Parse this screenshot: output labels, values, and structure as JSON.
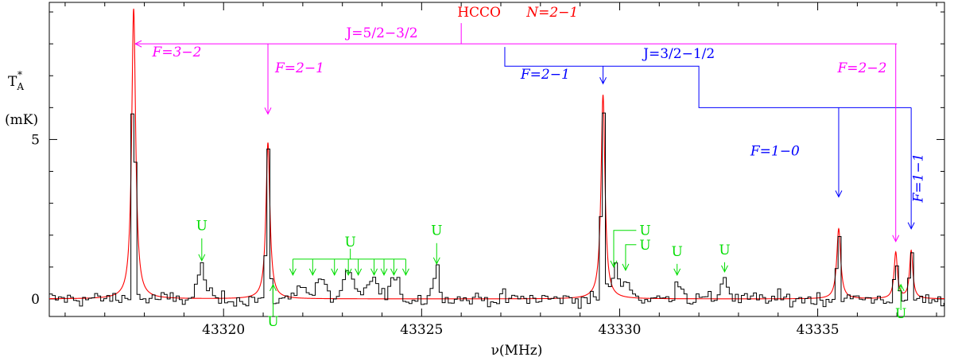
{
  "chart_data": {
    "type": "line",
    "title": "",
    "xlabel": "ν(MHz)",
    "ylabel_top": "T",
    "ylabel_sub": "A",
    "ylabel_sup": "*",
    "ylabel_unit": "(mK)",
    "xlim": [
      43315.6,
      43338.2
    ],
    "ylim": [
      -0.55,
      9.3
    ],
    "xticks": [
      {
        "value": 43320,
        "label": "43320"
      },
      {
        "value": 43325,
        "label": "43325"
      },
      {
        "value": 43330,
        "label": "43330"
      },
      {
        "value": 43335,
        "label": "43335"
      }
    ],
    "xminor_step": 1,
    "yticks": [
      {
        "value": 0,
        "label": "0"
      },
      {
        "value": 5,
        "label": "5"
      }
    ],
    "yminor_step": 1,
    "grid": false,
    "series": [
      {
        "name": "",
        "kind": "observed",
        "color": "#000000",
        "sampling_mhz": 0.0763,
        "noise_rms_mk": 0.23,
        "features": [
          {
            "center": 43317.73,
            "peak": 8.0,
            "width": 0.04
          },
          {
            "center": 43321.12,
            "peak": 4.8,
            "width": 0.04
          },
          {
            "center": 43329.58,
            "peak": 6.7,
            "width": 0.04
          },
          {
            "center": 43335.53,
            "peak": 2.3,
            "width": 0.04
          },
          {
            "center": 43336.97,
            "peak": 1.4,
            "width": 0.035
          },
          {
            "center": 43337.36,
            "peak": 1.8,
            "width": 0.035
          },
          {
            "center": 43319.45,
            "peak": 1.0,
            "width": 0.1
          },
          {
            "center": 43325.38,
            "peak": 0.9,
            "width": 0.09
          },
          {
            "center": 43329.9,
            "peak": 0.9,
            "width": 0.1
          },
          {
            "center": 43330.2,
            "peak": 0.6,
            "width": 0.1
          },
          {
            "center": 43331.5,
            "peak": 0.6,
            "width": 0.09
          },
          {
            "center": 43332.65,
            "peak": 0.7,
            "width": 0.09
          },
          {
            "center": 43321.95,
            "peak": 0.5,
            "width": 0.12
          },
          {
            "center": 43322.45,
            "peak": 0.6,
            "width": 0.12
          },
          {
            "center": 43323.15,
            "peak": 0.8,
            "width": 0.12
          },
          {
            "center": 43323.75,
            "peak": 0.7,
            "width": 0.12
          },
          {
            "center": 43324.3,
            "peak": 0.6,
            "width": 0.12
          }
        ]
      },
      {
        "name": "",
        "kind": "model",
        "color": "#ff0000",
        "peaks": [
          {
            "center": 43317.73,
            "height": 9.1,
            "hwhm": 0.06
          },
          {
            "center": 43321.12,
            "height": 4.9,
            "hwhm": 0.06
          },
          {
            "center": 43329.58,
            "height": 6.4,
            "hwhm": 0.06
          },
          {
            "center": 43335.53,
            "height": 2.2,
            "hwhm": 0.06
          },
          {
            "center": 43336.97,
            "height": 1.45,
            "hwhm": 0.05
          },
          {
            "center": 43337.36,
            "height": 1.5,
            "hwhm": 0.05
          }
        ]
      }
    ],
    "annotations": {
      "molecule": {
        "text": "HCCO",
        "color": "#ff0000",
        "x": 43327.0,
        "y": 8.85
      },
      "transition": {
        "text": "N=2−1",
        "color": "#ff0000",
        "x": 43328.3,
        "y": 8.85
      },
      "j_magenta": {
        "text": "J=5/2−3/2",
        "color": "#ff00ff",
        "label_x": 43324.0,
        "label_y": 8.2,
        "stem_x": 43326.0,
        "stem_top": 8.65,
        "bar_y": 8.0,
        "bar_from": 43317.73,
        "bar_to": 43337.0
      },
      "j_blue": {
        "text": "J=3/2−1/2",
        "color": "#0000ff",
        "label_x": 43331.5,
        "label_y": 7.55,
        "stem_x": 43327.1,
        "stem_top": 7.9,
        "bar_y": 7.3,
        "bar_to": 43332.0,
        "step_x": 43332.0,
        "bar2_y": 6.0,
        "bar2_from": 43329.58,
        "bar2_to": 43337.36
      },
      "f_labels": [
        {
          "text": "F=3−2",
          "color": "#ff00ff",
          "label_x": 43318.2,
          "label_y": 7.6,
          "arrow_x": 43317.73,
          "from_y": 8.0,
          "to_y": 8.0,
          "style": "left"
        },
        {
          "text": "F=2−1",
          "color": "#ff00ff",
          "label_x": 43321.3,
          "label_y": 7.1,
          "arrow_x": 43321.12,
          "from_y": 8.0,
          "to_y": 5.8,
          "style": "down"
        },
        {
          "text": "F=2−1",
          "color": "#0000ff",
          "label_x": 43327.5,
          "label_y": 6.9,
          "arrow_x": 43329.58,
          "from_y": 7.3,
          "to_y": 6.75,
          "style": "down"
        },
        {
          "text": "F=1−0",
          "color": "#0000ff",
          "label_x": 43333.3,
          "label_y": 4.5,
          "arrow_x": 43335.53,
          "from_y": 6.0,
          "to_y": 3.2,
          "style": "down"
        },
        {
          "text": "F=2−2",
          "color": "#ff00ff",
          "label_x": 43335.5,
          "label_y": 7.1,
          "arrow_x": 43336.97,
          "from_y": 8.0,
          "to_y": 1.8,
          "style": "down"
        },
        {
          "text": "F=1−1",
          "color": "#0000ff",
          "label_x": 43337.65,
          "label_y": 3.8,
          "arrow_x": 43337.36,
          "from_y": 6.0,
          "to_y": 2.2,
          "style": "down_vertical_label"
        }
      ],
      "unidentified": {
        "text": "U",
        "color": "#00dd00",
        "markers": [
          {
            "x": 43319.45,
            "label_y": 2.15,
            "from_y": 1.9,
            "to_y": 1.2,
            "dir": "down"
          },
          {
            "x": 43325.38,
            "label_y": 2.0,
            "from_y": 1.75,
            "to_y": 1.1,
            "dir": "down"
          },
          {
            "x": 43331.45,
            "label_y": 1.35,
            "from_y": 1.1,
            "to_y": 0.75,
            "dir": "down"
          },
          {
            "x": 43332.65,
            "label_y": 1.4,
            "from_y": 1.15,
            "to_y": 0.85,
            "dir": "down"
          },
          {
            "x": 43321.25,
            "label_y": -0.85,
            "from_y": -0.55,
            "to_y": 0.45,
            "dir": "up"
          },
          {
            "x": 43337.1,
            "label_y": -0.6,
            "from_y": -0.35,
            "to_y": 0.45,
            "dir": "up"
          }
        ],
        "elbows": [
          {
            "label_x": 43330.5,
            "label_y": 2.0,
            "hook_x": 43329.85,
            "to_y": 1.0
          },
          {
            "label_x": 43330.5,
            "label_y": 1.55,
            "hook_x": 43330.15,
            "to_y": 0.9
          }
        ],
        "bracket": {
          "label_x": 43323.2,
          "label_y": 1.65,
          "bar_y": 1.25,
          "from_x": 43321.75,
          "to_x": 43324.6,
          "to_y": 0.75,
          "xs": [
            43321.75,
            43322.25,
            43322.8,
            43323.15,
            43323.4,
            43323.8,
            43324.05,
            43324.3,
            43324.6
          ]
        }
      }
    }
  }
}
